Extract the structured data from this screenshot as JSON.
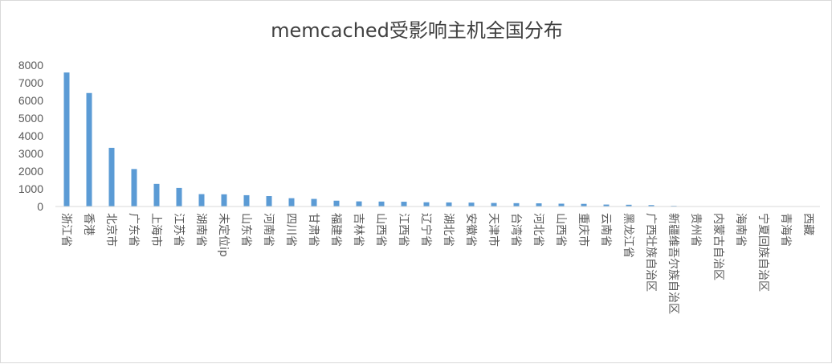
{
  "chart_data": {
    "type": "bar",
    "title": "memcached受影响主机全国分布",
    "xlabel": "",
    "ylabel": "",
    "ylim": [
      0,
      8000
    ],
    "yticks": [
      0,
      1000,
      2000,
      3000,
      4000,
      5000,
      6000,
      7000,
      8000
    ],
    "grid": false,
    "legend": "none",
    "bar_color": "#5b9bd5",
    "categories": [
      "浙江省",
      "香港",
      "北京市",
      "广东省",
      "上海市",
      "江苏省",
      "湖南省",
      "未定位ip",
      "山东省",
      "河南省",
      "四川省",
      "甘肃省",
      "福建省",
      "吉林省",
      "山西省",
      "江西省",
      "辽宁省",
      "湖北省",
      "安徽省",
      "天津市",
      "台湾省",
      "河北省",
      "山西省",
      "重庆市",
      "云南省",
      "黑龙江省",
      "广西壮族自治区",
      "新疆维吾尔族自治区",
      "贵州省",
      "内蒙古自治区",
      "海南省",
      "宁夏回族自治区",
      "青海省",
      "西藏"
    ],
    "values": [
      7580,
      6420,
      3320,
      2120,
      1280,
      1050,
      700,
      690,
      640,
      590,
      470,
      430,
      330,
      290,
      280,
      270,
      240,
      230,
      220,
      200,
      190,
      180,
      160,
      150,
      110,
      100,
      80,
      40,
      20,
      15,
      12,
      10,
      5,
      3
    ]
  }
}
